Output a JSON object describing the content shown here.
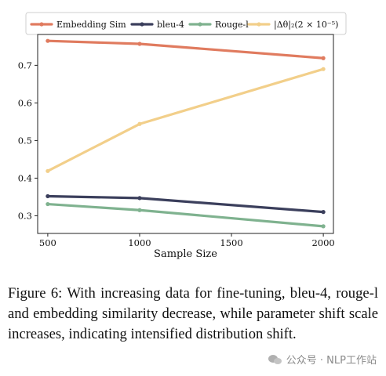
{
  "chart_data": {
    "type": "line",
    "xlabel": "Sample Size",
    "ylabel": "",
    "x": [
      500,
      1000,
      2000
    ],
    "xticks": [
      500,
      1000,
      1500,
      2000
    ],
    "xlim": [
      445,
      2055
    ],
    "yticks": [
      0.3,
      0.4,
      0.5,
      0.6,
      0.7
    ],
    "yticklabels": [
      "0.3",
      "0.4",
      "0.5",
      "0.6",
      "0.7"
    ],
    "ylim": [
      0.253,
      0.782
    ],
    "grid": false,
    "legend_position": "top",
    "series": [
      {
        "name": "Embedding Sim",
        "color": "#e07b5f",
        "values": [
          0.765,
          0.757,
          0.719
        ]
      },
      {
        "name": "bleu-4",
        "color": "#3b3f5c",
        "values": [
          0.352,
          0.347,
          0.31
        ]
      },
      {
        "name": "Rouge-l",
        "color": "#7fb28f",
        "values": [
          0.331,
          0.315,
          0.272
        ]
      },
      {
        "name": "|Δθ|₂(2 × 10⁻⁵)",
        "color": "#f2cf8a",
        "values": [
          0.419,
          0.544,
          0.69
        ]
      }
    ]
  },
  "caption": "Figure 6: With increasing data for fine-tuning, bleu-4, rouge-l and embedding similarity decrease, while parameter shift scale increases, indicating intensified distribution shift.",
  "watermark": {
    "icon": "wechat-icon",
    "text": "公众号 · NLP工作站"
  }
}
